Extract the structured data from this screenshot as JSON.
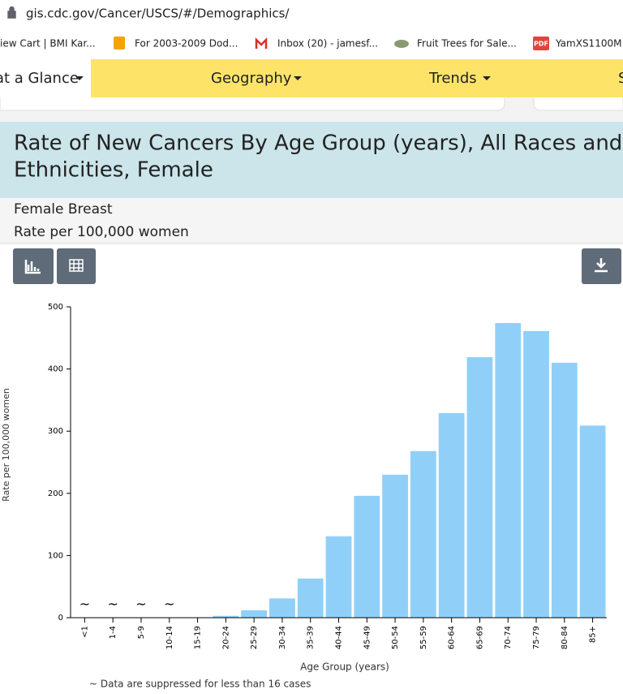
{
  "browser": {
    "url": "gis.cdc.gov/Cancer/USCS/#/Demographics/",
    "bookmarks": [
      "iew Cart | BMI Kar...",
      "For 2003-2009 Dod...",
      "Inbox (20) - jamesf...",
      "Fruit Trees for Sale...",
      "YamXS1100M"
    ],
    "pdf_badge": "PDF"
  },
  "nav": [
    "at a Glance",
    "Geography",
    "Trends",
    "S"
  ],
  "panel": {
    "title_line1": "Rate of New Cancers By Age Group (years), All Races and",
    "title_line2": "Ethnicities, Female",
    "site": "Female Breast",
    "measure": "Rate per 100,000 women"
  },
  "chart_data": {
    "type": "bar",
    "categories": [
      "<1",
      "1-4",
      "5-9",
      "10-14",
      "15-19",
      "20-24",
      "25-29",
      "30-34",
      "35-39",
      "40-44",
      "45-49",
      "50-54",
      "55-59",
      "60-64",
      "65-69",
      "70-74",
      "75-79",
      "80-84",
      "85+"
    ],
    "values": [
      null,
      null,
      null,
      null,
      0.4,
      3,
      12,
      31,
      63,
      131,
      196,
      230,
      268,
      329,
      419,
      474,
      461,
      410,
      309
    ],
    "value_labels": [
      "~",
      "~",
      "~",
      "~",
      null,
      null,
      null,
      null,
      null,
      null,
      null,
      null,
      null,
      null,
      null,
      null,
      null,
      null,
      null
    ],
    "color": "#90d0f8",
    "ylim": [
      0,
      500
    ],
    "yticks": [
      0,
      100,
      200,
      300,
      400,
      500
    ],
    "x_label": "Age Group (years)",
    "y_label": "Rate per 100,000 women",
    "note": "~ Data are suppressed for less than 16 cases"
  }
}
